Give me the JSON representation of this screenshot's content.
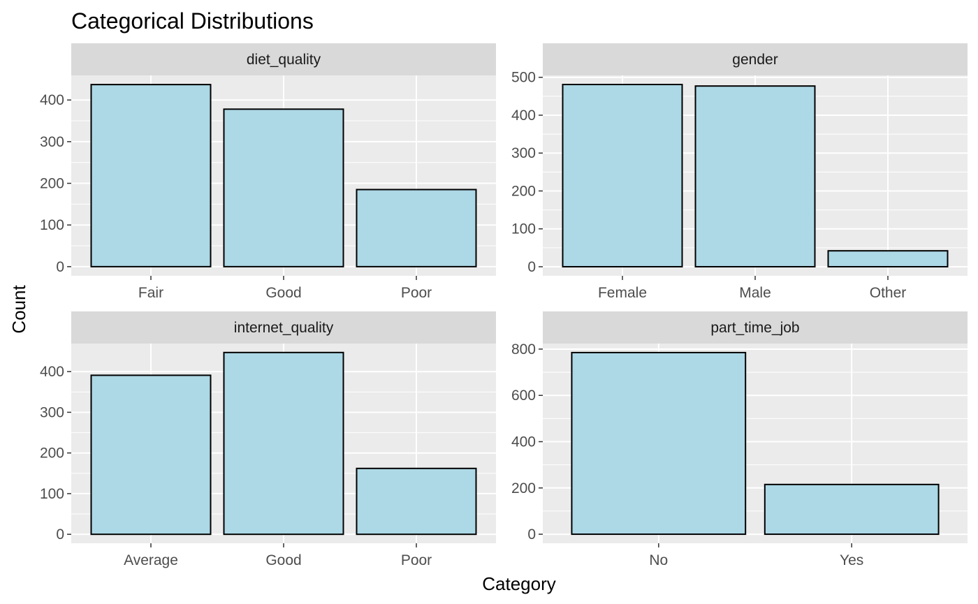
{
  "chart_data": {
    "title": "Categorical Distributions",
    "xlabel": "Category",
    "ylabel": "Count",
    "type": "bar",
    "facets": [
      {
        "name": "diet_quality",
        "categories": [
          "Fair",
          "Good",
          "Poor"
        ],
        "values": [
          437,
          378,
          185
        ],
        "yticks": [
          0,
          100,
          200,
          300,
          400
        ],
        "ylim": [
          -22,
          459
        ]
      },
      {
        "name": "gender",
        "categories": [
          "Female",
          "Male",
          "Other"
        ],
        "values": [
          481,
          477,
          42
        ],
        "yticks": [
          0,
          100,
          200,
          300,
          400,
          500
        ],
        "ylim": [
          -24,
          505
        ]
      },
      {
        "name": "internet_quality",
        "categories": [
          "Average",
          "Good",
          "Poor"
        ],
        "values": [
          391,
          447,
          162
        ],
        "yticks": [
          0,
          100,
          200,
          300,
          400
        ],
        "ylim": [
          -22,
          469
        ]
      },
      {
        "name": "part_time_job",
        "categories": [
          "No",
          "Yes"
        ],
        "values": [
          785,
          215
        ],
        "yticks": [
          0,
          200,
          400,
          600,
          800
        ],
        "ylim": [
          -39,
          824
        ]
      }
    ],
    "colors": {
      "bar_fill": "#add8e6",
      "bar_stroke": "#000000",
      "panel_bg": "#ebebeb",
      "strip_bg": "#d9d9d9",
      "grid": "#ffffff"
    },
    "grid": true
  }
}
